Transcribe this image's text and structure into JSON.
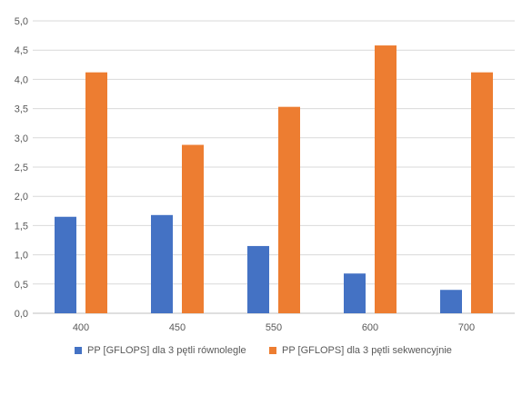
{
  "chart_data": {
    "type": "bar",
    "categories": [
      "400",
      "450",
      "550",
      "600",
      "700"
    ],
    "series": [
      {
        "name": "PP [GFLOPS] dla 3 pętli równolegle",
        "color": "#4472C4",
        "values": [
          1.65,
          1.68,
          1.15,
          0.68,
          0.4
        ]
      },
      {
        "name": "PP [GFLOPS] dla 3 pętli sekwencyjnie",
        "color": "#ED7D31",
        "values": [
          4.12,
          2.88,
          3.53,
          4.58,
          4.12
        ]
      }
    ],
    "ylim": [
      0,
      5
    ],
    "ytick_step": 0.5,
    "ytick_labels": [
      "0,0",
      "0,5",
      "1,0",
      "1,5",
      "2,0",
      "2,5",
      "3,0",
      "3,5",
      "4,0",
      "4,5",
      "5,0"
    ],
    "grid": true,
    "legend_position": "bottom",
    "title": "",
    "xlabel": "",
    "ylabel": ""
  }
}
